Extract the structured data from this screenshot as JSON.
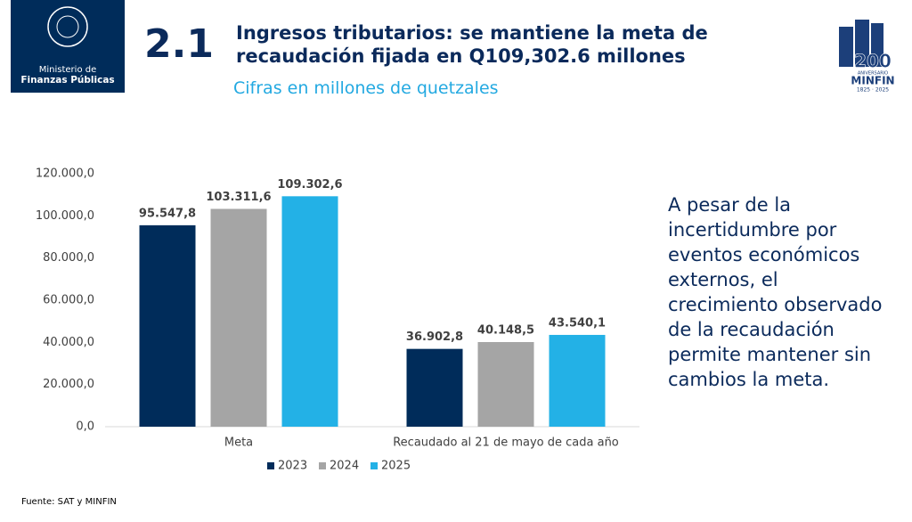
{
  "logo_left": {
    "line1": "Ministerio de",
    "line2": "Finanzas Públicas"
  },
  "section_number": "2.1",
  "chart_data": {
    "type": "bar",
    "title": "Ingresos tributarios: se mantiene la meta de recaudación fijada en Q109,302.6 millones",
    "subtitle": "Cifras en millones de quetzales",
    "categories": [
      "Meta",
      "Recaudado al 21 de mayo de cada año"
    ],
    "series": [
      {
        "name": "2023",
        "color": "#002c5a",
        "values": [
          95547.8,
          36902.8
        ],
        "value_labels": [
          "95.547,8",
          "36.902,8"
        ]
      },
      {
        "name": "2024",
        "color": "#a5a5a5",
        "values": [
          103311.6,
          40148.5
        ],
        "value_labels": [
          "103.311,6",
          "40.148,5"
        ]
      },
      {
        "name": "2025",
        "color": "#23b1e6",
        "values": [
          109302.6,
          43540.1
        ],
        "value_labels": [
          "109.302,6",
          "43.540,1"
        ]
      }
    ],
    "ylim": [
      0,
      120000
    ],
    "yticks": [
      {
        "value": 0,
        "label": "0,0"
      },
      {
        "value": 20000,
        "label": "20.000,0"
      },
      {
        "value": 40000,
        "label": "40.000,0"
      },
      {
        "value": 60000,
        "label": "60.000,0"
      },
      {
        "value": 80000,
        "label": "80.000,0"
      },
      {
        "value": 100000,
        "label": "100.000,0"
      },
      {
        "value": 120000,
        "label": "120.000,0"
      }
    ],
    "grid": false,
    "legend": "bottom"
  },
  "side_text": "A pesar de la incertidumbre por eventos económicos externos, el crecimiento observado de la recaudación permite mantener sin cambios la meta.",
  "source": "Fuente: SAT y MINFIN",
  "logo_right": {
    "number": "200",
    "line1": "ANIVERSARIO",
    "line2": "MINFIN",
    "years": "1825 · 2025"
  }
}
